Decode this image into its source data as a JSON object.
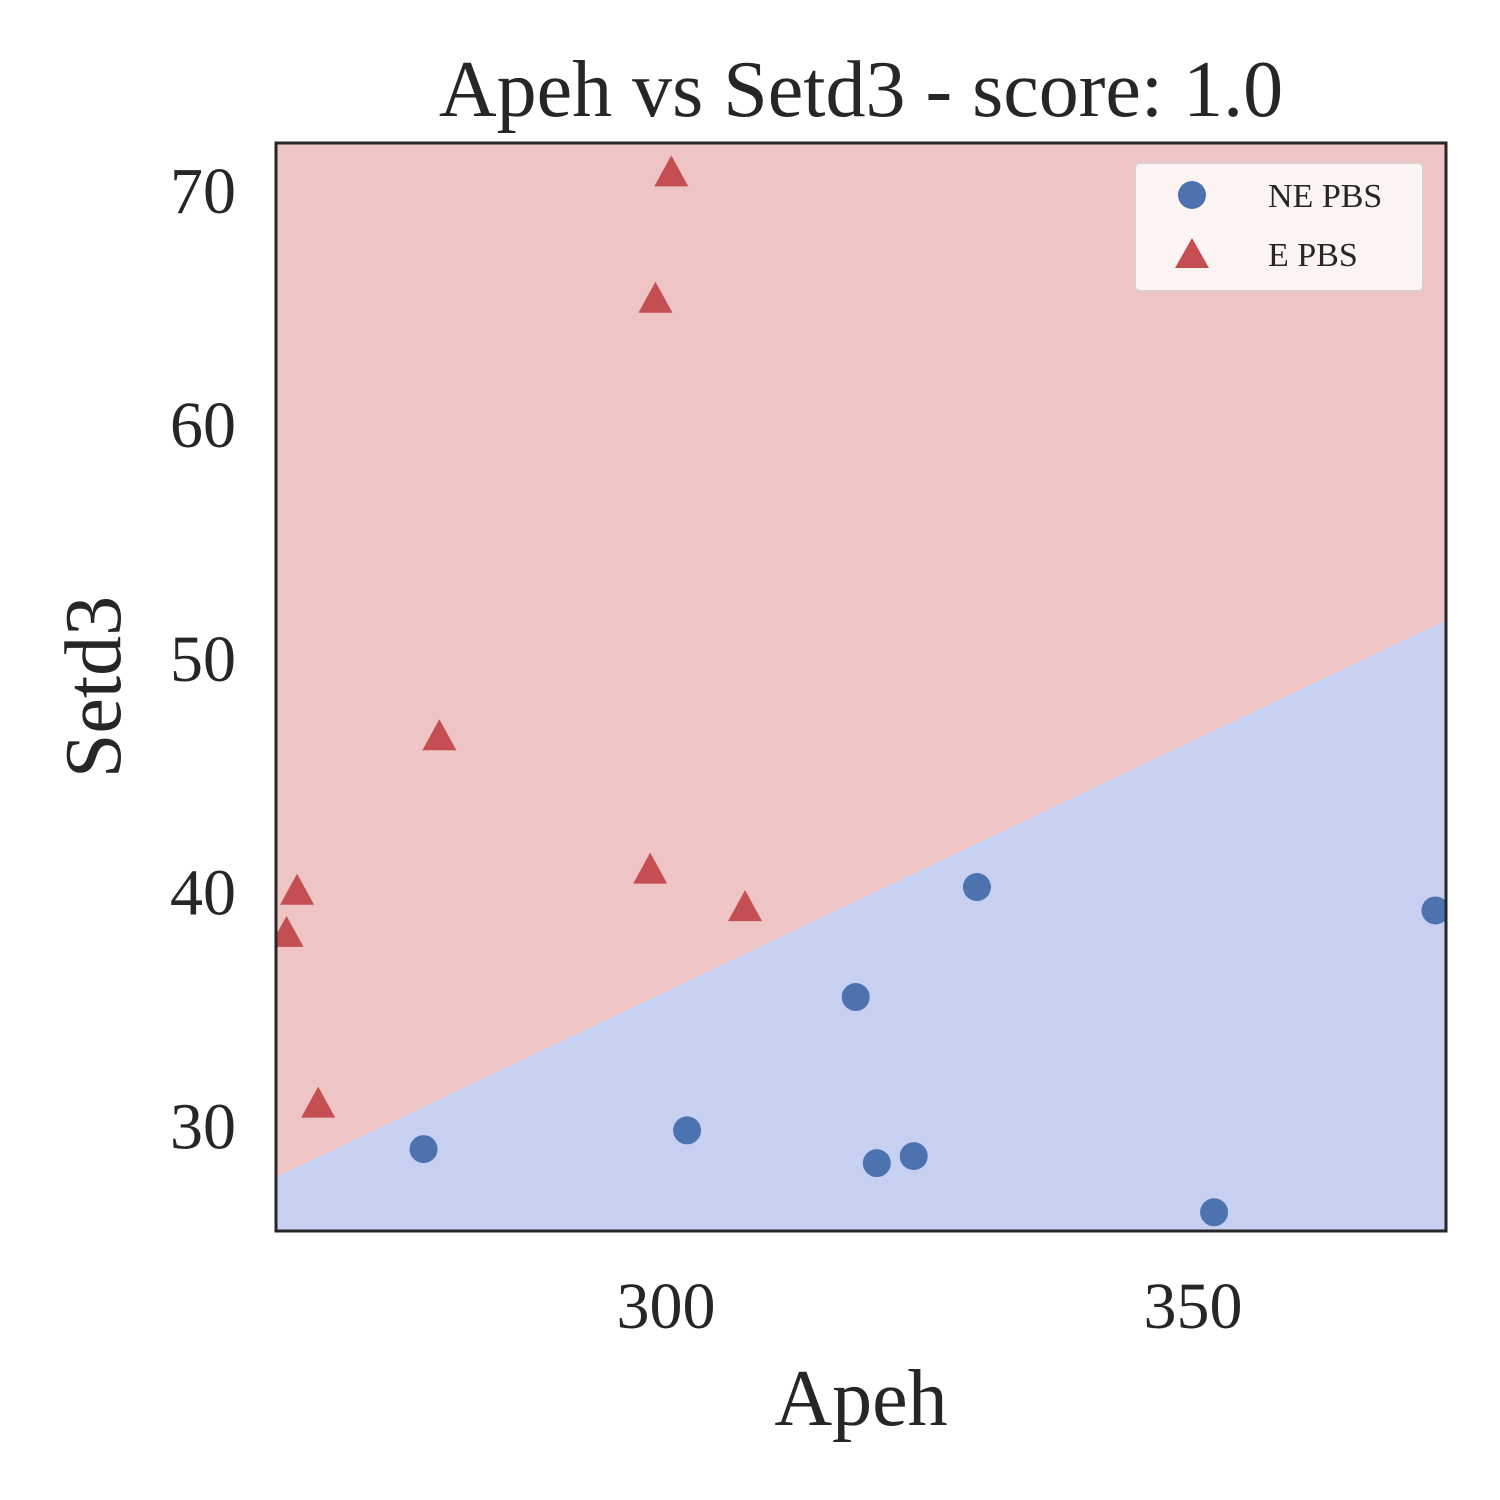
{
  "chart_data": {
    "type": "scatter",
    "title": "Apeh vs Setd3 - score: 1.0",
    "xlabel": "Apeh",
    "ylabel": "Setd3",
    "xlim": [
      263,
      374
    ],
    "ylim": [
      25.5,
      72
    ],
    "xticks": [
      300,
      350
    ],
    "yticks": [
      30,
      40,
      50,
      60,
      70
    ],
    "grid": false,
    "legend_position": "top-right",
    "decision_boundary": {
      "points": [
        [
          263,
          27.8
        ],
        [
          374,
          51.6
        ]
      ],
      "upper_region": "E PBS",
      "lower_region": "NE PBS"
    },
    "series": [
      {
        "name": "NE PBS",
        "marker": "circle",
        "color": "#4c72b0",
        "region_color": "#c8d0f2",
        "points": [
          [
            277,
            29.0
          ],
          [
            302,
            29.8
          ],
          [
            318,
            35.5
          ],
          [
            320,
            28.4
          ],
          [
            323.5,
            28.7
          ],
          [
            329.5,
            40.2
          ],
          [
            352,
            26.3
          ],
          [
            373,
            39.2
          ]
        ]
      },
      {
        "name": "E PBS",
        "marker": "triangle",
        "color": "#c44e52",
        "region_color": "#eec5c4",
        "points": [
          [
            264,
            38.2
          ],
          [
            265,
            40.0
          ],
          [
            267,
            30.9
          ],
          [
            278.5,
            46.6
          ],
          [
            298.5,
            40.9
          ],
          [
            299,
            65.3
          ],
          [
            300.5,
            70.7
          ],
          [
            307.5,
            39.3
          ]
        ]
      }
    ]
  }
}
